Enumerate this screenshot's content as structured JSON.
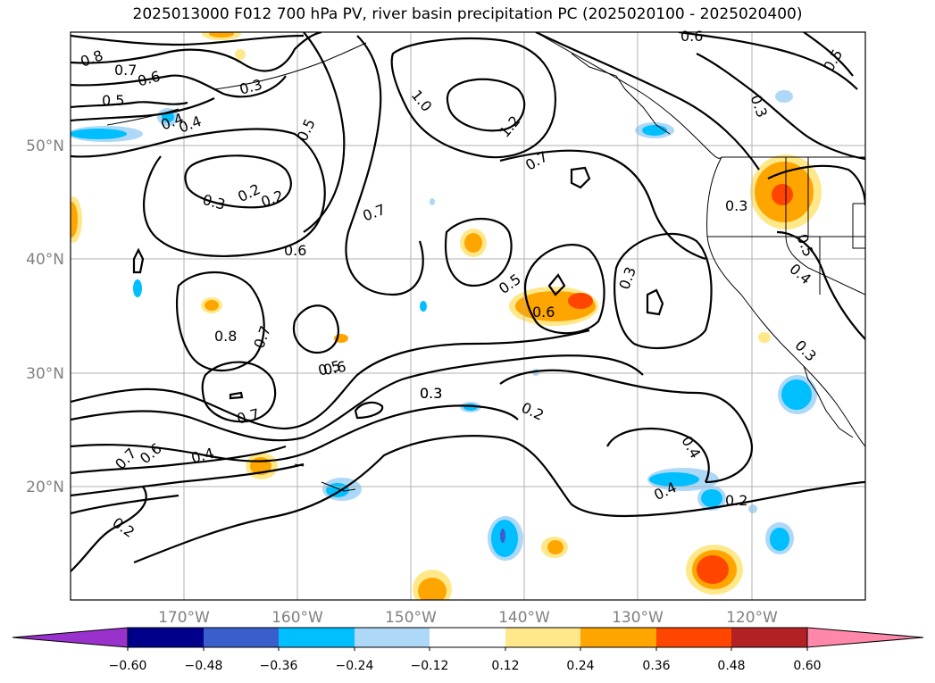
{
  "title": "2025013000 F012 700 hPa PV, river basin precipitation PC (2025020100 - 2025020400)",
  "map": {
    "lat_labels": [
      "50°N",
      "40°N",
      "30°N",
      "20°N"
    ],
    "lon_labels": [
      "170°W",
      "160°W",
      "150°W",
      "140°W",
      "130°W",
      "120°W"
    ],
    "lat_range": [
      10,
      60
    ],
    "lon_range": [
      -180,
      -110
    ],
    "grid": true,
    "contour_labels": [
      "0.8",
      "0.7",
      "0.6",
      "0.5",
      "0.4",
      "0.3",
      "0.2",
      "1.0",
      "1.2",
      "0.5",
      "0.4",
      "0.3",
      "0.6",
      "0.7",
      "0.7",
      "0.6",
      "0.3",
      "0.2",
      "0.7",
      "0.8",
      "0.5",
      "0.6",
      "0.3",
      "0.5",
      "0.3",
      "0.2",
      "0.7",
      "0.4",
      "0.6",
      "0.7",
      "0.2",
      "0.4",
      "0.4",
      "0.2",
      "0.3",
      "0.5",
      "0.4",
      "0.3",
      "0.3",
      "0.6",
      "0.5"
    ]
  },
  "colorbar": {
    "ticks": [
      "−0.60",
      "−0.48",
      "−0.36",
      "−0.24",
      "−0.12",
      "0.12",
      "0.24",
      "0.36",
      "0.48",
      "0.60"
    ],
    "colors": [
      "#9932cc",
      "#00008b",
      "#3a5fcd",
      "#00bfff",
      "#add8f8",
      "#ffffff",
      "#ffe88a",
      "#ffa500",
      "#ff4500",
      "#b22222",
      "#ff88aa"
    ]
  }
}
